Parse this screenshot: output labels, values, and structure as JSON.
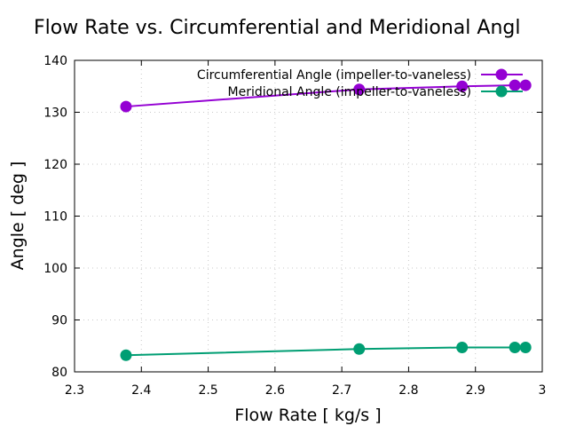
{
  "chart_data": {
    "type": "line",
    "title": "Flow Rate vs. Circumferential and Meridional Angl",
    "xlabel": "Flow Rate [ kg/s ]",
    "ylabel": "Angle [ deg ]",
    "xlim": [
      2.3,
      3.0
    ],
    "ylim": [
      80,
      140
    ],
    "xticks": [
      2.3,
      2.4,
      2.5,
      2.6,
      2.7,
      2.8,
      2.9,
      3.0
    ],
    "xtick_labels": [
      "2.3",
      "2.4",
      "2.5",
      "2.6",
      "2.7",
      "2.8",
      "2.9",
      "3"
    ],
    "yticks": [
      80,
      90,
      100,
      110,
      120,
      130,
      140
    ],
    "ytick_labels": [
      "80",
      "90",
      "100",
      "110",
      "120",
      "130",
      "140"
    ],
    "grid": true,
    "legend_position": "top-right",
    "series": [
      {
        "name": "Circumferential Angle (impeller-to-vaneless)",
        "color": "#9400d3",
        "x": [
          2.377,
          2.726,
          2.88,
          2.959,
          2.975
        ],
        "y": [
          131.1,
          134.4,
          135.0,
          135.2,
          135.2
        ]
      },
      {
        "name": "Meridional Angle (impeller-to-vaneless)",
        "color": "#009e73",
        "x": [
          2.377,
          2.726,
          2.88,
          2.959,
          2.975
        ],
        "y": [
          83.2,
          84.4,
          84.7,
          84.7,
          84.7
        ]
      }
    ]
  }
}
